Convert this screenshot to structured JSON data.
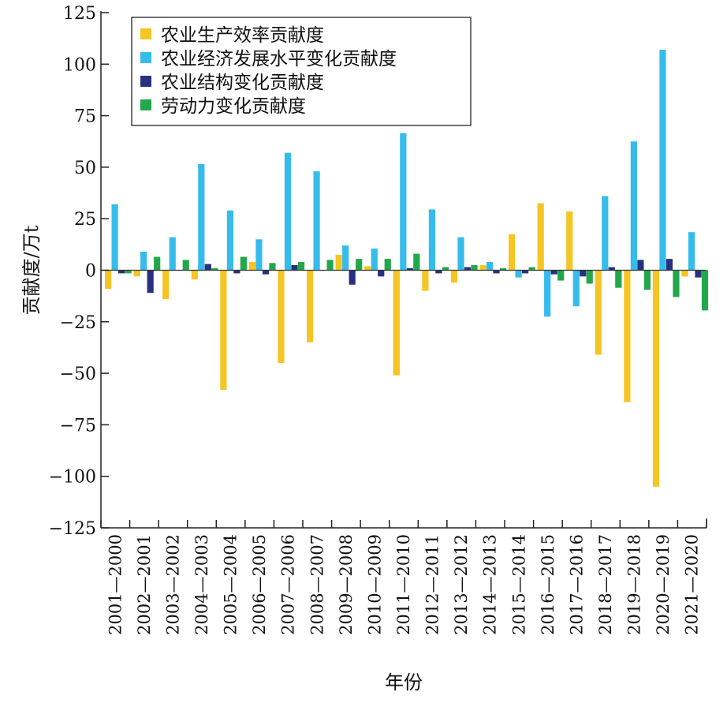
{
  "chart_data": {
    "type": "bar",
    "xlabel": "年份",
    "ylabel": "贡献度/万t",
    "ylim": [
      -125,
      125
    ],
    "yticks": [
      125,
      100,
      75,
      50,
      25,
      0,
      -25,
      -50,
      -75,
      -100,
      -125
    ],
    "ytick_labels": [
      "125",
      "100",
      "75",
      "50",
      "25",
      "0",
      "−25",
      "−50",
      "−75",
      "−100",
      "−125"
    ],
    "legend_position": "top-left",
    "grid": false,
    "categories": [
      "2001—2000",
      "2002—2001",
      "2003—2002",
      "2004—2003",
      "2005—2004",
      "2006—2005",
      "2007—2006",
      "2008—2007",
      "2009—2008",
      "2010—2009",
      "2011—2010",
      "2012—2011",
      "2013—2012",
      "2014—2013",
      "2015—2014",
      "2016—2015",
      "2017—2016",
      "2018—2017",
      "2019—2018",
      "2020—2019",
      "2021—2020"
    ],
    "series": [
      {
        "name": "农业生产效率贡献度",
        "color": "#F4C523",
        "values": [
          -9,
          -3,
          -14,
          -4.5,
          -58,
          4,
          -45,
          -35,
          7.5,
          2,
          -51,
          -10,
          -6,
          2.5,
          17.5,
          32.5,
          28.5,
          -41,
          -64,
          -105,
          -3
        ]
      },
      {
        "name": "农业经济发展水平变化贡献度",
        "color": "#35BCEB",
        "values": [
          32,
          9,
          16,
          51.5,
          29,
          15,
          57,
          48,
          12,
          10.5,
          66.5,
          29.5,
          16,
          4,
          -3.5,
          -22.5,
          -17.5,
          36,
          62.5,
          107,
          18.5
        ]
      },
      {
        "name": "农业结构变化贡献度",
        "color": "#28307F",
        "values": [
          -1.5,
          -11,
          0,
          3,
          -1.5,
          -2,
          2.5,
          0,
          -7,
          -3,
          1,
          -1.5,
          1.5,
          -1.5,
          -1.5,
          -2,
          -3,
          1.5,
          5,
          5.5,
          -3.5
        ]
      },
      {
        "name": "劳动力变化贡献度",
        "color": "#22A84A",
        "values": [
          -1.5,
          6.5,
          5,
          1,
          6.5,
          3.5,
          4,
          5,
          5.5,
          5.5,
          8,
          1.5,
          2.5,
          1,
          1.5,
          -5,
          -6.5,
          -8.5,
          -9.5,
          -13,
          -19.5
        ]
      }
    ]
  }
}
